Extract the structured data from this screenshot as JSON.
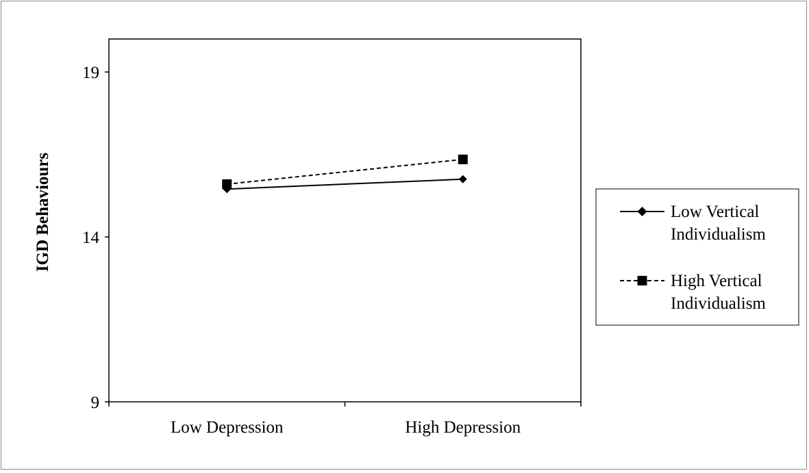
{
  "chart_data": {
    "type": "line",
    "title": "",
    "xlabel": "",
    "ylabel": "IGD Behaviours",
    "categories": [
      "Low Depression",
      "High Depression"
    ],
    "ylim": [
      9,
      20
    ],
    "yticks": [
      9,
      14,
      19
    ],
    "grid": false,
    "legend_position": "right",
    "series": [
      {
        "name_lines": [
          "Low Vertical",
          "Individualism"
        ],
        "values": [
          15.45,
          15.75
        ],
        "line_style": "solid",
        "marker": "diamond",
        "color": "#000000"
      },
      {
        "name_lines": [
          "High Vertical",
          "Individualism"
        ],
        "values": [
          15.6,
          16.35
        ],
        "line_style": "dashed",
        "marker": "square",
        "color": "#000000"
      }
    ]
  }
}
